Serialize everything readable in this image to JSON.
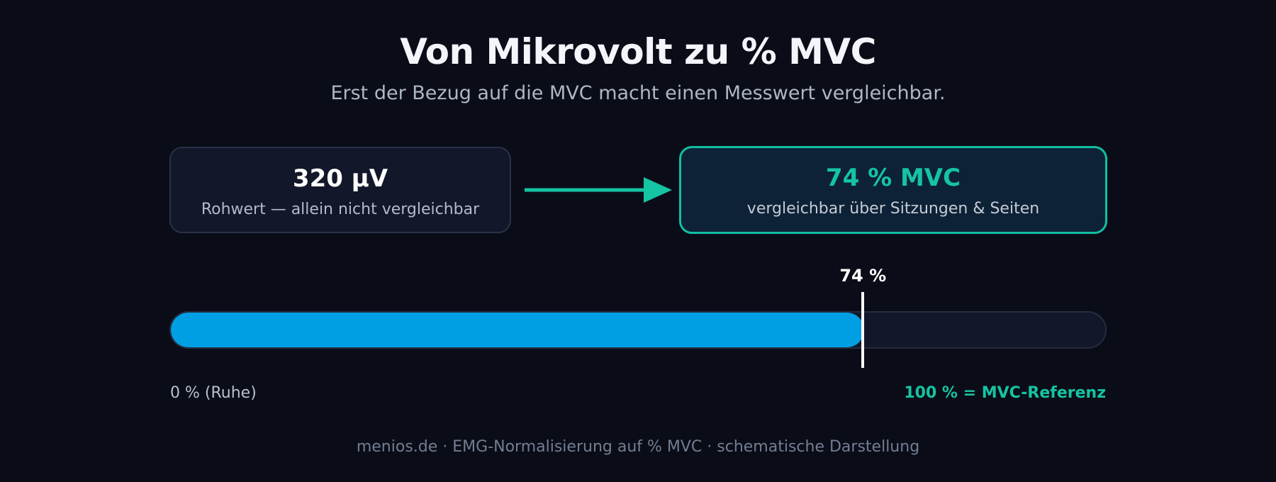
{
  "header": {
    "title": "Von Mikrovolt zu % MVC",
    "subtitle": "Erst der Bezug auf die MVC macht einen Messwert vergleichbar."
  },
  "raw_card": {
    "value": "320 µV",
    "caption": "Rohwert — allein nicht vergleichbar"
  },
  "normalized_card": {
    "value": "74 % MVC",
    "caption": "vergleichbar über Sitzungen & Seiten"
  },
  "progress": {
    "percent": 74,
    "marker_label": "74 %",
    "min_label": "0 % (Ruhe)",
    "max_label": "100 % = MVC-Referenz"
  },
  "footer": {
    "text": "menios.de · EMG-Normalisierung auf % MVC · schematische Darstellung"
  },
  "colors": {
    "accent": "#15c4a2",
    "bar_fill": "#009fe3",
    "background": "#0a0d18"
  },
  "icons": {
    "arrow": "arrow-right-icon"
  }
}
